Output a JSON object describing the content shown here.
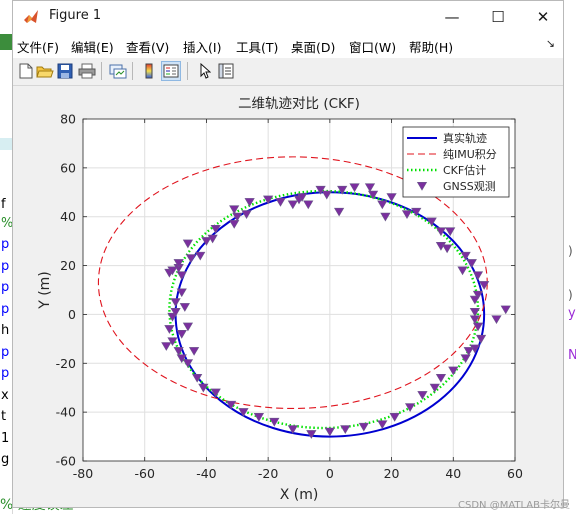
{
  "window": {
    "title": "Figure 1",
    "minimize_glyph": "—",
    "maximize_glyph": "☐",
    "close_glyph": "✕"
  },
  "menu": {
    "items": [
      {
        "label": "文件(F)"
      },
      {
        "label": "编辑(E)"
      },
      {
        "label": "查看(V)"
      },
      {
        "label": "插入(I)"
      },
      {
        "label": "工具(T)"
      },
      {
        "label": "桌面(D)"
      },
      {
        "label": "窗口(W)"
      },
      {
        "label": "帮助(H)"
      }
    ],
    "overflow_glyph": "↘"
  },
  "toolbar": {
    "icons": [
      "new-figure-icon",
      "open-file-icon",
      "save-icon",
      "print-icon",
      "link-plot-icon",
      "colorbar-icon",
      "legend-icon",
      "pointer-icon",
      "property-inspector-icon"
    ]
  },
  "background": {
    "left_fragments": [
      "f",
      "%",
      "p",
      "p",
      "p",
      "p",
      "h",
      "p",
      "p",
      "x",
      "t",
      "1",
      "g"
    ],
    "bottom_text": "% 速度误差",
    "right_fragments": [
      "y",
      "N"
    ]
  },
  "watermark": "CSDN @MATLAB卡尔曼",
  "colors": {
    "true_traj": "#0000d0",
    "imu": "#e0141e",
    "ckf": "#00e000",
    "gnss": "#7b2f9e",
    "gnss_edge": "#6a5a8a"
  },
  "chart_data": {
    "type": "line",
    "title": "二维轨迹对比 (CKF)",
    "xlabel": "X (m)",
    "ylabel": "Y (m)",
    "xlim": [
      -80,
      60
    ],
    "ylim": [
      -60,
      80
    ],
    "xticks": [
      -80,
      -60,
      -40,
      -20,
      0,
      20,
      40,
      60
    ],
    "yticks": [
      -60,
      -40,
      -20,
      0,
      20,
      40,
      60,
      80
    ],
    "grid": true,
    "legend_position": "top-right",
    "series": [
      {
        "name": "真实轨迹",
        "style": "solid",
        "shape": "ellipse",
        "center": [
          0,
          0
        ],
        "radii": [
          50,
          50
        ]
      },
      {
        "name": "纯IMU积分",
        "style": "dashed",
        "shape": "ellipse",
        "center": [
          -12,
          13
        ],
        "radii": [
          63,
          51.5
        ]
      },
      {
        "name": "CKF估计",
        "style": "dotted",
        "shape": "ellipse",
        "center": [
          -2,
          2
        ],
        "radii": [
          50,
          48.5
        ]
      },
      {
        "name": "GNSS观测",
        "style": "marker-triangle-down",
        "points": [
          [
            -53,
            -13
          ],
          [
            -52,
            -6
          ],
          [
            -51,
            -1
          ],
          [
            -50,
            1
          ],
          [
            -50,
            5
          ],
          [
            -48,
            9
          ],
          [
            -52,
            17
          ],
          [
            -51,
            18
          ],
          [
            -49,
            19
          ],
          [
            -48,
            16
          ],
          [
            -49,
            21
          ],
          [
            -45,
            23
          ],
          [
            -46,
            29
          ],
          [
            -42,
            24
          ],
          [
            -40,
            30
          ],
          [
            -38,
            31
          ],
          [
            -37,
            35
          ],
          [
            -31,
            37
          ],
          [
            -30,
            40
          ],
          [
            -27,
            41
          ],
          [
            -31,
            43
          ],
          [
            -26,
            46
          ],
          [
            -20,
            47
          ],
          [
            -16,
            46
          ],
          [
            -12,
            45
          ],
          [
            -10,
            47
          ],
          [
            -9,
            48
          ],
          [
            -7,
            45
          ],
          [
            -3,
            51
          ],
          [
            -1,
            49
          ],
          [
            4,
            51
          ],
          [
            8,
            52
          ],
          [
            3,
            42
          ],
          [
            14,
            49
          ],
          [
            13,
            52
          ],
          [
            17,
            45
          ],
          [
            20,
            48
          ],
          [
            18,
            40
          ],
          [
            25,
            41
          ],
          [
            28,
            42
          ],
          [
            33,
            38
          ],
          [
            36,
            34
          ],
          [
            39,
            34
          ],
          [
            36,
            28
          ],
          [
            38,
            27
          ],
          [
            44,
            24
          ],
          [
            43,
            18
          ],
          [
            46,
            21
          ],
          [
            48,
            16
          ],
          [
            50,
            12
          ],
          [
            48,
            8
          ],
          [
            47,
            6
          ],
          [
            47,
            1
          ],
          [
            47,
            -2
          ],
          [
            48,
            -5
          ],
          [
            54,
            -2
          ],
          [
            57,
            2
          ],
          [
            49,
            -10
          ],
          [
            47,
            -14
          ],
          [
            45,
            -15
          ],
          [
            44,
            -18
          ],
          [
            40,
            -23
          ],
          [
            36,
            -26
          ],
          [
            34,
            -30
          ],
          [
            30,
            -33
          ],
          [
            26,
            -38
          ],
          [
            21,
            -42
          ],
          [
            17,
            -45
          ],
          [
            11,
            -46
          ],
          [
            5,
            -47
          ],
          [
            0,
            -48
          ],
          [
            -6,
            -49
          ],
          [
            -12,
            -47
          ],
          [
            -18,
            -44
          ],
          [
            -23,
            -42
          ],
          [
            -28,
            -40
          ],
          [
            -32,
            -37
          ],
          [
            -37,
            -32
          ],
          [
            -41,
            -30
          ],
          [
            -43,
            -26
          ],
          [
            -46,
            -20
          ],
          [
            -48,
            -18
          ],
          [
            -49,
            -15
          ],
          [
            -51,
            -11
          ],
          [
            -48,
            -8
          ],
          [
            -46,
            -5
          ],
          [
            -47,
            3
          ],
          [
            -44,
            -15
          ]
        ]
      }
    ]
  }
}
